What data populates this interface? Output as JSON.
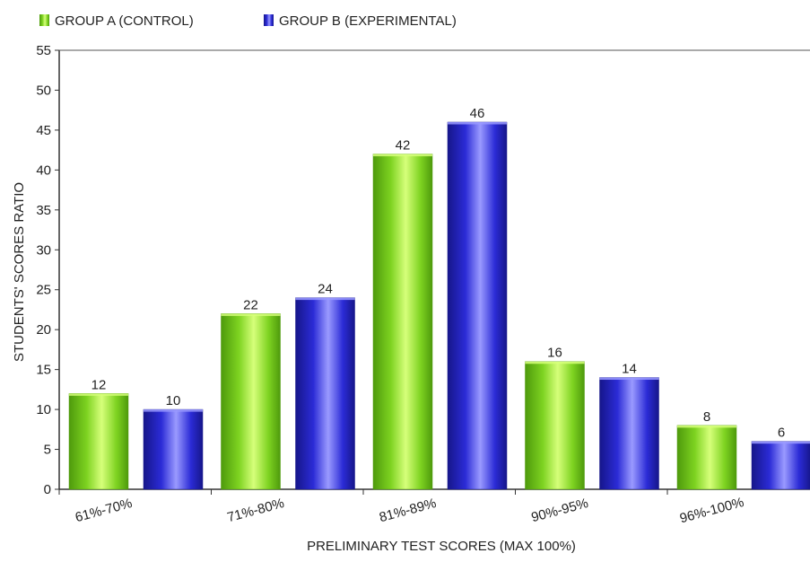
{
  "chart_data": {
    "type": "bar",
    "title": "",
    "xlabel": "PRELIMINARY TEST SCORES (MAX 100%)",
    "ylabel": "STUDENTS' SCORES RATIO",
    "ylim": [
      0,
      55
    ],
    "yticks": [
      0,
      5,
      10,
      15,
      20,
      25,
      30,
      35,
      40,
      45,
      50,
      55
    ],
    "grid": false,
    "legend_position": "top-left",
    "categories": [
      "61%-70%",
      "71%-80%",
      "81%-89%",
      "90%-95%",
      "96%-100%"
    ],
    "series": [
      {
        "name": "GROUP A (CONTROL)",
        "values": [
          12,
          22,
          42,
          16,
          8
        ],
        "color": "#7ed321",
        "color_light": "#d6ff7a",
        "color_dark": "#4e9a0c"
      },
      {
        "name": "GROUP B (EXPERIMENTAL)",
        "values": [
          10,
          24,
          46,
          14,
          6
        ],
        "color": "#2b2bd6",
        "color_light": "#9a9aff",
        "color_dark": "#16168a"
      }
    ]
  }
}
